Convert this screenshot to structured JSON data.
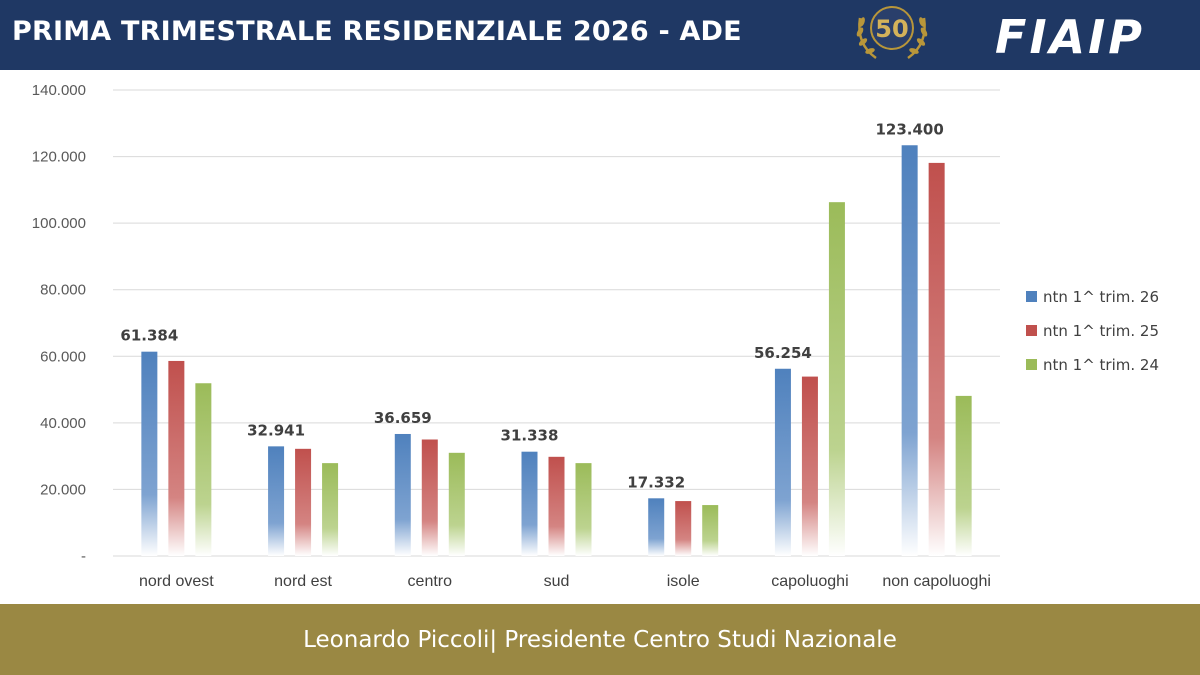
{
  "header": {
    "title": "PRIMA TRIMESTRALE RESIDENZIALE 2026 - ADE",
    "seal_text": "50",
    "logo_text": "FIAIP"
  },
  "footer": {
    "text": "Leonardo Piccoli| Presidente Centro Studi Nazionale"
  },
  "colors": {
    "header_bg": "#1f3864",
    "footer_bg": "#9a8843",
    "series": [
      "#4f81bd",
      "#c0504d",
      "#9bbb59"
    ]
  },
  "chart_data": {
    "type": "bar",
    "categories": [
      "nord ovest",
      "nord est",
      "centro",
      "sud",
      "isole",
      "capoluoghi",
      "non capoluoghi"
    ],
    "series": [
      {
        "name": "ntn 1^ trim. 26",
        "values": [
          61384,
          32941,
          36659,
          31338,
          17332,
          56254,
          123400
        ]
      },
      {
        "name": "ntn 1^ trim. 25",
        "values": [
          58600,
          32200,
          35000,
          29800,
          16500,
          53900,
          118100
        ]
      },
      {
        "name": "ntn 1^ trim. 24",
        "values": [
          51900,
          27900,
          31000,
          27900,
          15300,
          106300,
          48100
        ]
      }
    ],
    "data_labels": [
      "61.384",
      "32.941",
      "36.659",
      "31.338",
      "17.332",
      "56.254",
      "123.400"
    ],
    "y_ticks": [
      {
        "value": 0,
        "label": "-"
      },
      {
        "value": 20000,
        "label": "20.000"
      },
      {
        "value": 40000,
        "label": "40.000"
      },
      {
        "value": 60000,
        "label": "60.000"
      },
      {
        "value": 80000,
        "label": "80.000"
      },
      {
        "value": 100000,
        "label": "100.000"
      },
      {
        "value": 120000,
        "label": "120.000"
      },
      {
        "value": 140000,
        "label": "140.000"
      }
    ],
    "ylim": [
      0,
      140000
    ],
    "grid": true,
    "legend_position": "right",
    "title": "",
    "xlabel": "",
    "ylabel": ""
  }
}
